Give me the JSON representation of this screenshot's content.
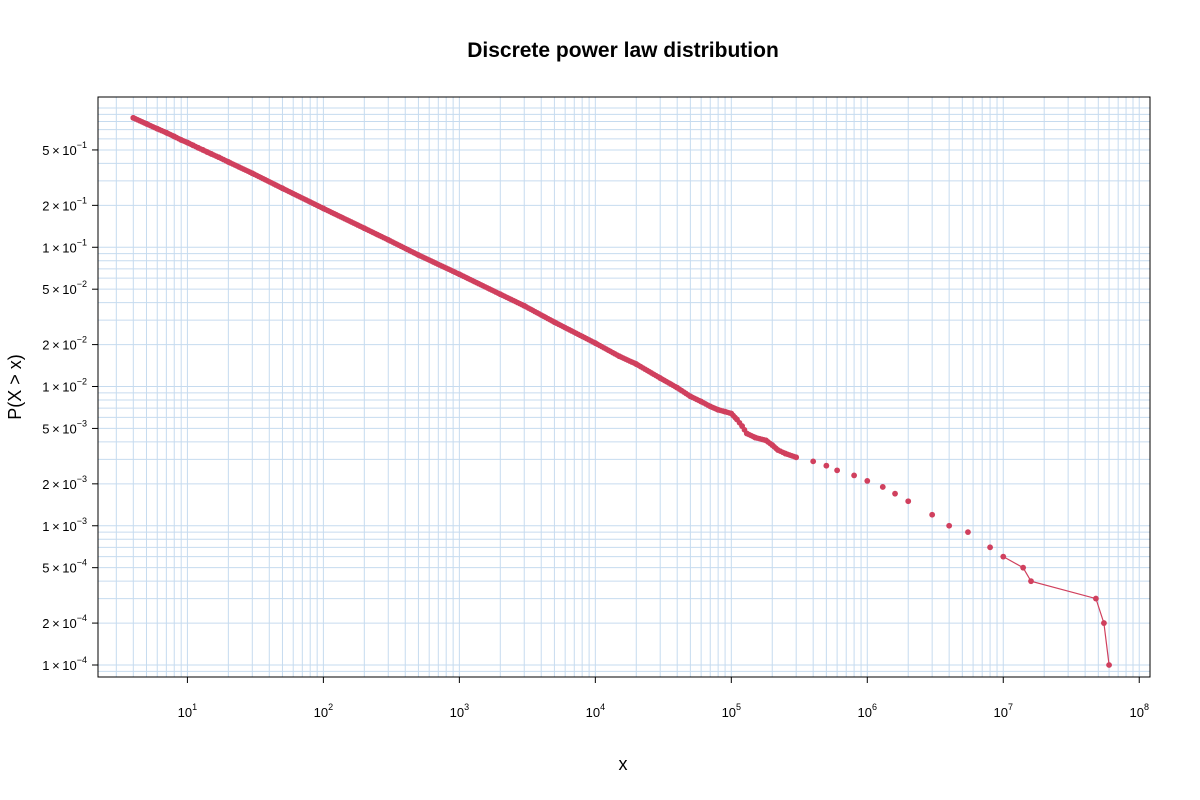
{
  "chart_data": {
    "type": "scatter",
    "title": "Discrete power law distribution",
    "xlabel": "x",
    "ylabel": "P(X > x)",
    "xscale": "log",
    "yscale": "log",
    "xlim": [
      2.2,
      120000000
    ],
    "ylim": [
      8.2e-05,
      1.2
    ],
    "grid": true,
    "point_color": "#d0405e",
    "grid_color": "#c6dbef",
    "x_ticks": [
      {
        "value": 10,
        "base": "10",
        "exp": "1"
      },
      {
        "value": 100,
        "base": "10",
        "exp": "2"
      },
      {
        "value": 1000,
        "base": "10",
        "exp": "3"
      },
      {
        "value": 10000,
        "base": "10",
        "exp": "4"
      },
      {
        "value": 100000,
        "base": "10",
        "exp": "5"
      },
      {
        "value": 1000000,
        "base": "10",
        "exp": "6"
      },
      {
        "value": 10000000,
        "base": "10",
        "exp": "7"
      },
      {
        "value": 100000000,
        "base": "10",
        "exp": "8"
      }
    ],
    "y_ticks": [
      {
        "value": 0.5,
        "mant": "5",
        "exp": "−1"
      },
      {
        "value": 0.2,
        "mant": "2",
        "exp": "−1"
      },
      {
        "value": 0.1,
        "mant": "1",
        "exp": "−1"
      },
      {
        "value": 0.05,
        "mant": "5",
        "exp": "−2"
      },
      {
        "value": 0.02,
        "mant": "2",
        "exp": "−2"
      },
      {
        "value": 0.01,
        "mant": "1",
        "exp": "−2"
      },
      {
        "value": 0.005,
        "mant": "5",
        "exp": "−3"
      },
      {
        "value": 0.002,
        "mant": "2",
        "exp": "−3"
      },
      {
        "value": 0.001,
        "mant": "1",
        "exp": "−3"
      },
      {
        "value": 0.0005,
        "mant": "5",
        "exp": "−4"
      },
      {
        "value": 0.0002,
        "mant": "2",
        "exp": "−4"
      },
      {
        "value": 0.0001,
        "mant": "1",
        "exp": "−4"
      }
    ],
    "points": [
      [
        4,
        0.85
      ],
      [
        5,
        0.77
      ],
      [
        6,
        0.71
      ],
      [
        7,
        0.665
      ],
      [
        8,
        0.625
      ],
      [
        9,
        0.59
      ],
      [
        10,
        0.565
      ],
      [
        11,
        0.54
      ],
      [
        12,
        0.518
      ],
      [
        13,
        0.5
      ],
      [
        14,
        0.483
      ],
      [
        15,
        0.468
      ],
      [
        17,
        0.443
      ],
      [
        20,
        0.41
      ],
      [
        30,
        0.34
      ],
      [
        50,
        0.265
      ],
      [
        100,
        0.19
      ],
      [
        200,
        0.137
      ],
      [
        300,
        0.113
      ],
      [
        500,
        0.088
      ],
      [
        1000,
        0.064
      ],
      [
        2000,
        0.046
      ],
      [
        3000,
        0.038
      ],
      [
        5000,
        0.029
      ],
      [
        10000,
        0.0205
      ],
      [
        15000,
        0.0165
      ],
      [
        20000,
        0.0145
      ],
      [
        30000,
        0.0115
      ],
      [
        40000,
        0.0098
      ],
      [
        50000,
        0.0085
      ],
      [
        60000,
        0.0078
      ],
      [
        70000,
        0.0072
      ],
      [
        80000,
        0.0068
      ],
      [
        90000,
        0.0066
      ],
      [
        100000,
        0.0064
      ],
      [
        110000,
        0.0058
      ],
      [
        120000,
        0.0052
      ],
      [
        130000,
        0.0046
      ],
      [
        150000,
        0.0043
      ],
      [
        180000,
        0.0041
      ],
      [
        200000,
        0.0038
      ],
      [
        220000,
        0.0035
      ],
      [
        250000,
        0.0033
      ],
      [
        300000,
        0.0031
      ],
      [
        400000,
        0.0029
      ],
      [
        500000,
        0.0027
      ],
      [
        600000,
        0.0025
      ],
      [
        800000,
        0.0023
      ],
      [
        1000000,
        0.0021
      ],
      [
        1300000,
        0.0019
      ],
      [
        1600000,
        0.0017
      ],
      [
        2000000,
        0.0015
      ],
      [
        3000000,
        0.0012
      ],
      [
        4000000,
        0.001
      ],
      [
        5500000,
        0.0009
      ],
      [
        8000000,
        0.0007
      ],
      [
        10000000,
        0.0006
      ],
      [
        14000000,
        0.0005
      ],
      [
        16000000,
        0.0004
      ],
      [
        48000000,
        0.0003
      ],
      [
        55000000,
        0.0002
      ],
      [
        60000000,
        0.0001
      ]
    ],
    "tail_line": [
      [
        10000000,
        0.0006
      ],
      [
        14000000,
        0.0005
      ],
      [
        16000000,
        0.0004
      ],
      [
        48000000,
        0.0003
      ],
      [
        55000000,
        0.0002
      ],
      [
        60000000,
        0.0001
      ]
    ]
  }
}
